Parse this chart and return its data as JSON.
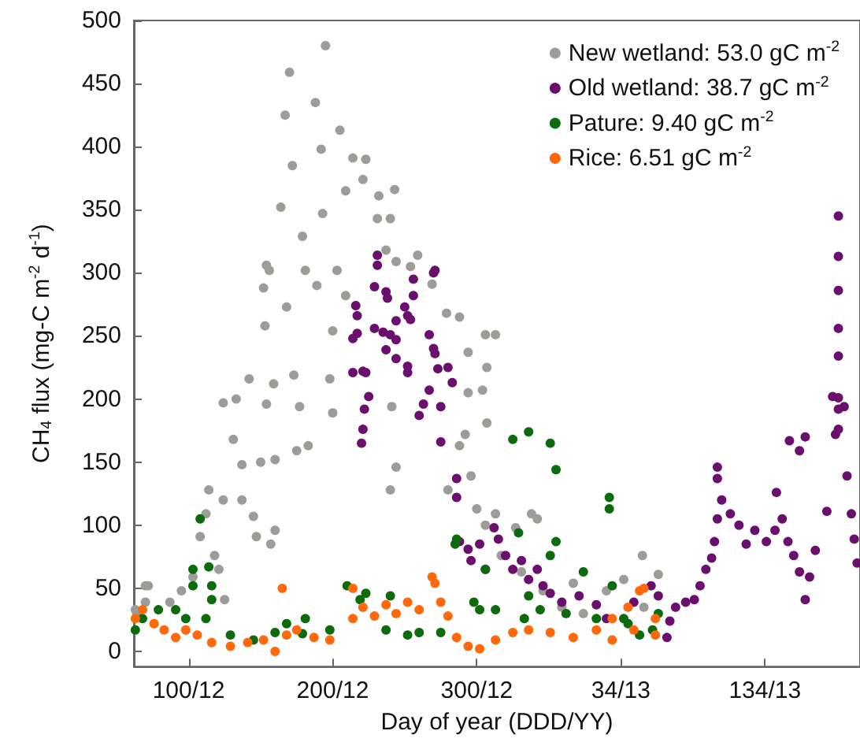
{
  "chart_data": {
    "type": "scatter",
    "xlabel": "Day of year (DDD/YY)",
    "ylabel": "CH$_{4}$ flux (mg-C m$^{-2}$ d$^{-1}$)",
    "xlim": [
      "2012-03-02",
      "2013-07-19"
    ],
    "xticks": [
      {
        "value": "2012-04-09",
        "label": "100/12"
      },
      {
        "value": "2012-07-18",
        "label": "200/12"
      },
      {
        "value": "2012-10-26",
        "label": "300/12"
      },
      {
        "value": "2013-02-03",
        "label": "34/13"
      },
      {
        "value": "2013-05-14",
        "label": "134/13"
      }
    ],
    "ylim": [
      -12,
      500
    ],
    "yticks": [
      0,
      50,
      100,
      150,
      200,
      250,
      300,
      350,
      400,
      450,
      500
    ],
    "grid": false,
    "legend": "top right",
    "marker": "circle",
    "series": [
      {
        "name": "New wetland: 53.0 gC m$^{-2}$",
        "color": "#9c9c98",
        "x": [
          "2012-03-03",
          "2012-03-04",
          "2012-03-10",
          "2012-03-10",
          "2012-03-12",
          "2012-03-27",
          "2012-04-04",
          "2012-04-12",
          "2012-04-17",
          "2012-04-21",
          "2012-04-23",
          "2012-04-27",
          "2012-04-30",
          "2012-05-03",
          "2012-05-03",
          "2012-05-04",
          "2012-05-10",
          "2012-05-12",
          "2012-05-16",
          "2012-05-16",
          "2012-05-21",
          "2012-05-24",
          "2012-05-26",
          "2012-05-29",
          "2012-05-31",
          "2012-06-01",
          "2012-06-02",
          "2012-06-02",
          "2012-06-04",
          "2012-06-05",
          "2012-06-07",
          "2012-06-08",
          "2012-06-08",
          "2012-06-12",
          "2012-06-15",
          "2012-06-16",
          "2012-06-18",
          "2012-06-20",
          "2012-06-21",
          "2012-06-23",
          "2012-06-25",
          "2012-06-27",
          "2012-06-29",
          "2012-07-01",
          "2012-07-06",
          "2012-07-07",
          "2012-07-10",
          "2012-07-11",
          "2012-07-13",
          "2012-07-16",
          "2012-07-18",
          "2012-07-18",
          "2012-07-21",
          "2012-07-23",
          "2012-07-27",
          "2012-07-27",
          "2012-08-01",
          "2012-08-08",
          "2012-08-10",
          "2012-08-18",
          "2012-08-19",
          "2012-08-24",
          "2012-08-27",
          "2012-08-27",
          "2012-08-28",
          "2012-08-30",
          "2012-08-31",
          "2012-08-31",
          "2012-09-10",
          "2012-09-15",
          "2012-09-25",
          "2012-10-05",
          "2012-10-06",
          "2012-10-14",
          "2012-10-14",
          "2012-10-18",
          "2012-10-20",
          "2012-10-20",
          "2012-10-22",
          "2012-10-26",
          "2012-10-30",
          "2012-11-01",
          "2012-11-01",
          "2012-11-02",
          "2012-11-02",
          "2012-11-08",
          "2012-11-08",
          "2012-11-12",
          "2012-11-22",
          "2012-11-26",
          "2012-12-03",
          "2012-12-07",
          "2012-12-11",
          "2012-12-24",
          "2013-01-01",
          "2013-01-08",
          "2013-01-24",
          "2013-02-05",
          "2013-02-18",
          "2013-02-19",
          "2013-02-27",
          "2013-03-01"
        ],
        "values": [
          33,
          30,
          39,
          52,
          52,
          39,
          48,
          59,
          91,
          109,
          128,
          76,
          65,
          120,
          197,
          41,
          168,
          200,
          148,
          120,
          216,
          107,
          91,
          150,
          288,
          258,
          306,
          196,
          302,
          85,
          212,
          152,
          96,
          352,
          425,
          273,
          459,
          385,
          219,
          159,
          194,
          329,
          302,
          163,
          435,
          290,
          398,
          347,
          480,
          216,
          189,
          254,
          302,
          413,
          282,
          365,
          391,
          374,
          390,
          343,
          361,
          318,
          343,
          128,
          194,
          366,
          146,
          309,
          305,
          314,
          291,
          268,
          128,
          265,
          163,
          172,
          205,
          237,
          139,
          113,
          207,
          251,
          100,
          225,
          181,
          251,
          109,
          76,
          98,
          63,
          109,
          105,
          48,
          35,
          54,
          30,
          48,
          57,
          76,
          35,
          null,
          61
        ]
      },
      {
        "name": "Old wetland: 38.7 gC m$^{-2}$",
        "color": "#6b0f6e",
        "x": [
          "2012-08-01",
          "2012-08-01",
          "2012-08-03",
          "2012-08-04",
          "2012-08-04",
          "2012-08-07",
          "2012-08-08",
          "2012-08-08",
          "2012-08-09",
          "2012-08-10",
          "2012-08-12",
          "2012-08-16",
          "2012-08-16",
          "2012-08-18",
          "2012-08-18",
          "2012-08-22",
          "2012-08-24",
          "2012-08-24",
          "2012-08-25",
          "2012-08-27",
          "2012-08-31",
          "2012-08-31",
          "2012-08-31",
          "2012-09-06",
          "2012-09-08",
          "2012-09-08",
          "2012-09-08",
          "2012-09-10",
          "2012-09-12",
          "2012-09-12",
          "2012-09-16",
          "2012-09-19",
          "2012-09-23",
          "2012-09-23",
          "2012-09-26",
          "2012-09-26",
          "2012-09-27",
          "2012-09-27",
          "2012-09-29",
          "2012-10-01",
          "2012-10-01",
          "2012-10-06",
          "2012-10-09",
          "2012-10-12",
          "2012-10-12",
          "2012-10-14",
          "2012-10-20",
          "2012-10-22",
          "2012-10-28",
          "2012-11-01",
          "2012-11-07",
          "2012-11-10",
          "2012-11-15",
          "2012-11-20",
          "2012-11-26",
          "2012-12-01",
          "2012-12-07",
          "2012-12-11",
          "2012-12-16",
          "2012-12-24",
          "2013-01-05",
          "2013-01-17",
          "2013-01-24",
          "2013-02-12",
          "2013-02-24",
          "2013-03-01",
          "2013-03-07",
          "2013-03-09",
          "2013-03-13",
          "2013-03-20",
          "2013-03-26",
          "2013-03-30",
          "2013-04-03",
          "2013-04-07",
          "2013-04-09",
          "2013-04-11",
          "2013-04-11",
          "2013-04-11",
          "2013-04-14",
          "2013-04-20",
          "2013-04-26",
          "2013-05-01",
          "2013-05-07",
          "2013-05-15",
          "2013-05-21",
          "2013-05-22",
          "2013-05-26",
          "2013-05-30",
          "2013-05-31",
          "2013-06-03",
          "2013-06-07",
          "2013-06-07",
          "2013-06-11",
          "2013-06-11",
          "2013-06-14",
          "2013-06-18",
          "2013-06-26",
          "2013-06-30",
          "2013-07-02",
          "2013-07-04",
          "2013-07-04",
          "2013-07-04",
          "2013-07-04",
          "2013-07-04",
          "2013-07-04",
          "2013-07-04",
          "2013-07-04",
          "2013-07-08",
          "2013-07-10",
          "2013-07-13",
          "2013-07-15",
          "2013-07-17"
        ],
        "values": [
          221,
          248,
          274,
          266,
          252,
          165,
          176,
          222,
          192,
          221,
          202,
          289,
          256,
          314,
          306,
          253,
          285,
          239,
          280,
          251,
          247,
          232,
          262,
          273,
          266,
          221,
          226,
          263,
          295,
          282,
          187,
          196,
          207,
          251,
          300,
          240,
          302,
          236,
          224,
          194,
          166,
          225,
          213,
          137,
          122,
          87,
          81,
          72,
          85,
          65,
          98,
          89,
          76,
          65,
          72,
          57,
          65,
          52,
          46,
          39,
          44,
          37,
          26,
          39,
          52,
          44,
          11,
          24,
          35,
          39,
          41,
          52,
          65,
          74,
          87,
          105,
          137,
          146,
          120,
          109,
          100,
          85,
          96,
          87,
          96,
          126,
          105,
          87,
          167,
          76,
          63,
          159,
          41,
          170,
          59,
          80,
          111,
          202,
          172,
          345,
          313,
          286,
          256,
          234,
          201,
          192,
          176,
          194,
          139,
          109,
          89,
          70
        ]
      },
      {
        "name": "Pature: 9.40 gC m$^{-2}$",
        "color": "#0d6a0d",
        "x": [
          "2012-03-03",
          "2012-03-08",
          "2012-03-19",
          "2012-03-31",
          "2012-04-07",
          "2012-04-12",
          "2012-04-12",
          "2012-04-17",
          "2012-04-21",
          "2012-04-23",
          "2012-04-25",
          "2012-04-25",
          "2012-05-08",
          "2012-05-24",
          "2012-06-08",
          "2012-06-16",
          "2012-06-27",
          "2012-06-29",
          "2012-07-16",
          "2012-07-28",
          "2012-08-06",
          "2012-08-10",
          "2012-08-24",
          "2012-08-27",
          "2012-09-08",
          "2012-09-16",
          "2012-10-01",
          "2012-10-11",
          "2012-10-12",
          "2012-10-24",
          "2012-10-28",
          "2012-11-01",
          "2012-11-08",
          "2012-11-20",
          "2012-11-24",
          "2012-11-28",
          "2012-12-01",
          "2012-12-01",
          "2012-12-09",
          "2012-12-16",
          "2012-12-16",
          "2012-12-20",
          "2012-12-20",
          "2012-12-27",
          "2013-01-08",
          "2013-01-17",
          "2013-01-26",
          "2013-01-26",
          "2013-01-28",
          "2013-02-05",
          "2013-02-08",
          "2013-02-16",
          "2013-02-25",
          "2013-03-01"
        ],
        "values": [
          17,
          26,
          33,
          33,
          26,
          52,
          65,
          105,
          26,
          67,
          52,
          41,
          13,
          9,
          15,
          22,
          14,
          26,
          17,
          52,
          41,
          46,
          17,
          44,
          13,
          15,
          15,
          85,
          89,
          39,
          33,
          65,
          33,
          168,
          94,
          26,
          174,
          44,
          33,
          165,
          76,
          144,
          87,
          30,
          63,
          26,
          122,
          113,
          52,
          26,
          22,
          13,
          17,
          30
        ]
      },
      {
        "name": "Rice: 6.51 gC m$^{-2}$",
        "color": "#ff690a",
        "x": [
          "2012-03-03",
          "2012-03-08",
          "2012-03-16",
          "2012-03-23",
          "2012-03-31",
          "2012-04-07",
          "2012-04-15",
          "2012-04-25",
          "2012-05-08",
          "2012-05-20",
          "2012-05-31",
          "2012-06-08",
          "2012-06-13",
          "2012-06-16",
          "2012-06-23",
          "2012-07-05",
          "2012-07-16",
          "2012-08-01",
          "2012-08-01",
          "2012-08-08",
          "2012-08-16",
          "2012-08-24",
          "2012-08-31",
          "2012-09-08",
          "2012-09-16",
          "2012-09-25",
          "2012-09-27",
          "2012-10-01",
          "2012-10-06",
          "2012-10-12",
          "2012-10-20",
          "2012-10-28",
          "2012-11-08",
          "2012-11-20",
          "2012-12-01",
          "2012-12-16",
          "2013-01-01",
          "2013-01-17",
          "2013-01-28",
          "2013-01-28",
          "2013-02-08",
          "2013-02-12",
          "2013-02-16",
          "2013-02-19",
          "2013-02-27",
          "2013-02-27"
        ],
        "values": [
          26,
          33,
          22,
          17,
          11,
          17,
          13,
          7,
          4,
          7,
          9,
          0,
          50,
          13,
          17,
          11,
          9,
          50,
          26,
          35,
          28,
          37,
          30,
          39,
          33,
          59,
          54,
          39,
          28,
          11,
          4,
          2,
          9,
          15,
          17,
          15,
          11,
          17,
          9,
          26,
          35,
          17,
          48,
          50,
          26,
          13
        ]
      }
    ]
  }
}
